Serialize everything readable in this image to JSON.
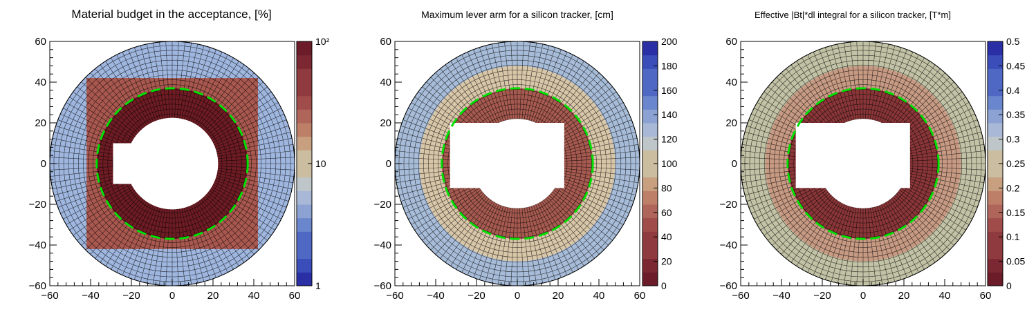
{
  "chart_data": [
    {
      "type": "heatmap",
      "subtype": "polar-map",
      "title": "Material budget in the acceptance, [%]",
      "xlim": [
        -60,
        60
      ],
      "ylim": [
        -60,
        60
      ],
      "x_ticks": [
        "−60",
        "−40",
        "−20",
        "0",
        "20",
        "40",
        "60"
      ],
      "y_ticks": [
        "−60",
        "−40",
        "−20",
        "0",
        "20",
        "40",
        "60"
      ],
      "colorbar": {
        "scale": "log",
        "range": [
          1,
          100
        ],
        "ticks": [
          "1",
          "10",
          "10²"
        ]
      },
      "regions": [
        {
          "name": "outer ring",
          "value": 3,
          "color": "#9fb6df"
        },
        {
          "name": "square region",
          "value": 30,
          "color": "#a9584f"
        },
        {
          "name": "inner ring",
          "value": 80,
          "color": "#6e1c24"
        }
      ],
      "hole": "central hole r≈22 cm with notch at left",
      "reference_circle_radius": 37,
      "reference_circle_color": "#00e000"
    },
    {
      "type": "heatmap",
      "subtype": "polar-map",
      "title": "Maximum lever arm for a silicon tracker, [cm]",
      "xlim": [
        -60,
        60
      ],
      "ylim": [
        -60,
        60
      ],
      "x_ticks": [
        "−60",
        "−40",
        "−20",
        "0",
        "20",
        "40",
        "60"
      ],
      "y_ticks": [
        "−60",
        "−40",
        "−20",
        "0",
        "20",
        "40",
        "60"
      ],
      "colorbar": {
        "scale": "linear",
        "range": [
          0,
          200
        ],
        "ticks": [
          "0",
          "20",
          "40",
          "60",
          "80",
          "100",
          "120",
          "140",
          "160",
          "180",
          "200"
        ]
      },
      "regions": [
        {
          "name": "outer ring",
          "value": 120,
          "color": "#a7bcd8"
        },
        {
          "name": "middle ring",
          "value": 75,
          "color": "#d8c6a8"
        },
        {
          "name": "inner ring",
          "value": 25,
          "color": "#a65a50"
        }
      ],
      "hole": "rectangular cut x∈[-33,23], y∈[-12,20] plus inner radius 22 cm",
      "reference_circle_radius": 37,
      "reference_circle_color": "#00e000"
    },
    {
      "type": "heatmap",
      "subtype": "polar-map",
      "title": "Effective |Bt|*dl integral for a silicon tracker, [T*m]",
      "xlim": [
        -60,
        60
      ],
      "ylim": [
        -60,
        60
      ],
      "x_ticks": [
        "−60",
        "−40",
        "−20",
        "0",
        "20",
        "40",
        "60"
      ],
      "y_ticks": [
        "−60",
        "−40",
        "−20",
        "0",
        "20",
        "40",
        "60"
      ],
      "colorbar": {
        "scale": "linear",
        "range": [
          0,
          0.5
        ],
        "ticks": [
          "0",
          "0.05",
          "0.1",
          "0.15",
          "0.2",
          "0.25",
          "0.3",
          "0.35",
          "0.4",
          "0.45",
          "0.5"
        ]
      },
      "regions": [
        {
          "name": "outer ring",
          "value": 0.24,
          "color": "#c2c2a6"
        },
        {
          "name": "middle ring",
          "value": 0.16,
          "color": "#c79a83"
        },
        {
          "name": "inner ring",
          "value": 0.06,
          "color": "#8a3638"
        }
      ],
      "hole": "rectangular cut x∈[-33,23], y∈[-12,20] plus inner radius 22 cm",
      "reference_circle_radius": 37,
      "reference_circle_color": "#00e000"
    }
  ]
}
